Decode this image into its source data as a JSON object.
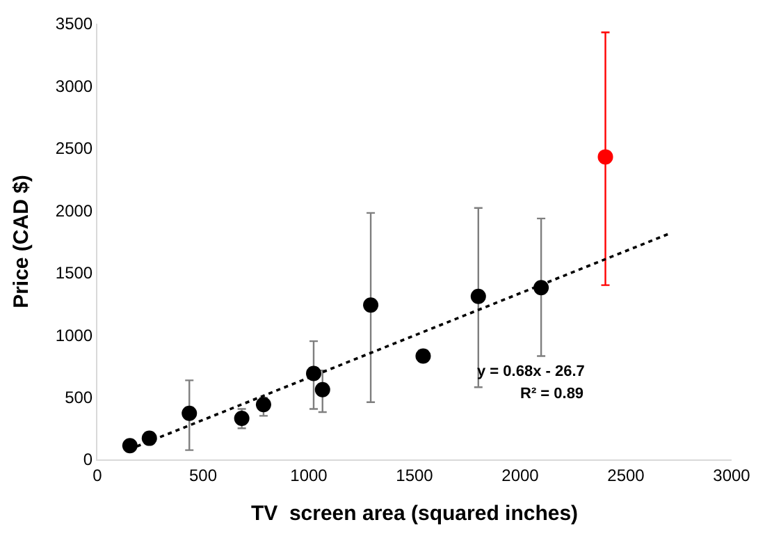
{
  "chart_data": {
    "type": "scatter",
    "xlabel": "TV  screen area (squared inches)",
    "ylabel": "Price (CAD $)",
    "xlim": [
      0,
      3000
    ],
    "xticks": [
      0,
      500,
      1000,
      1500,
      2000,
      2500,
      3000
    ],
    "ylim": [
      0,
      3500
    ],
    "yticks": [
      0,
      500,
      1000,
      1500,
      2000,
      2500,
      3000,
      3500
    ],
    "legend": false,
    "marker": "circle",
    "series": [
      {
        "color": "#000000",
        "x": [
          154,
          246,
          435,
          683,
          786,
          1023,
          1065,
          1293,
          1541,
          1802,
          2099
        ],
        "values": [
          110,
          170,
          370,
          330,
          440,
          690,
          560,
          1240,
          830,
          1310,
          1380
        ],
        "errors": [
          null,
          null,
          [
            75,
            635
          ],
          [
            250,
            405
          ],
          [
            350,
            495
          ],
          [
            405,
            950
          ],
          [
            380,
            715
          ],
          [
            460,
            1980
          ],
          null,
          [
            580,
            2020
          ],
          [
            830,
            1935
          ]
        ]
      },
      {
        "color": "#ff0000",
        "x": [
          2403
        ],
        "values": [
          2430
        ],
        "errors": [
          [
            1400,
            3430
          ]
        ]
      },
      {
        "type": "line",
        "color": "#000000",
        "line_style": "dotted",
        "marker": "none",
        "x": [
          150,
          2700
        ],
        "values": [
          80,
          1810
        ]
      }
    ],
    "annotations": [
      "y = 0.68x - 26.7",
      "R² = 0.89"
    ]
  }
}
